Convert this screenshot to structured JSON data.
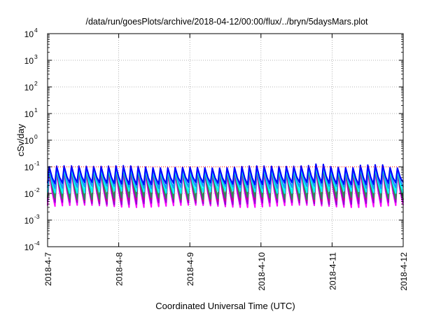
{
  "chart_data": {
    "type": "line",
    "title": "/data/run/goesPlots/archive/2018-04-12/00:00/flux/../bryn/5daysMars.plot",
    "xlabel": "Coordinated Universal Time (UTC)",
    "ylabel": "cSv/day",
    "x_ticks": [
      "2018-4-7",
      "2018-4-8",
      "2018-4-9",
      "2018-4-10",
      "2018-4-11",
      "2018-4-12"
    ],
    "x_range": [
      "2018-04-07",
      "2018-04-12"
    ],
    "y_scale": "log",
    "ylim": [
      0.0001,
      10000
    ],
    "y_ticks": [
      {
        "base": "10",
        "exp": "4"
      },
      {
        "base": "10",
        "exp": "3"
      },
      {
        "base": "10",
        "exp": "2"
      },
      {
        "base": "10",
        "exp": "1"
      },
      {
        "base": "10",
        "exp": "0"
      },
      {
        "base": "10",
        "exp": "-1"
      },
      {
        "base": "10",
        "exp": "-2"
      },
      {
        "base": "10",
        "exp": "-3"
      },
      {
        "base": "10",
        "exp": "-4"
      }
    ],
    "grid": true,
    "reference_line": {
      "y": 0.1,
      "color": "#ff0000",
      "style": "dotted"
    },
    "series": [
      {
        "color": "#ff00ff",
        "peak": 0.06,
        "trough": 0.0035
      },
      {
        "color": "#9400d3",
        "peak": 0.07,
        "trough": 0.0045
      },
      {
        "color": "#c8008c",
        "peak": 0.075,
        "trough": 0.006
      },
      {
        "color": "#2e8b57",
        "peak": 0.08,
        "trough": 0.007
      },
      {
        "color": "#00ffff",
        "peak": 0.085,
        "trough": 0.012
      },
      {
        "color": "#1e90ff",
        "peak": 0.09,
        "trough": 0.018
      },
      {
        "color": "#0000ff",
        "peak": 0.1,
        "trough": 0.025
      }
    ],
    "cycles": 48,
    "high_periods": [
      [
        4.35,
        4.5
      ],
      [
        4.45,
        4.6
      ],
      [
        4.5,
        4.65
      ]
    ],
    "colors": {
      "grid": "#a0a0a0",
      "reference": "#ff0000",
      "axis": "#000000"
    }
  }
}
